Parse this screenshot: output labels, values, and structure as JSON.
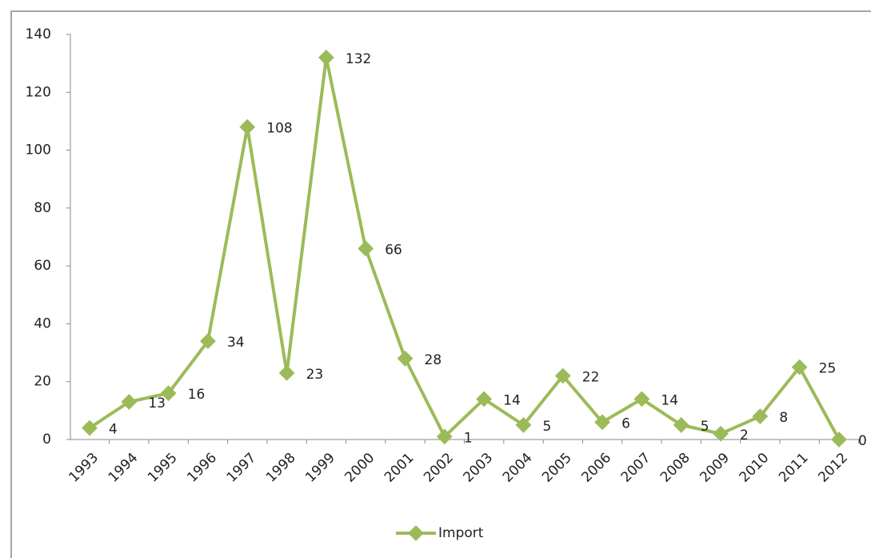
{
  "chart_data": {
    "type": "line",
    "categories": [
      "1993",
      "1994",
      "1995",
      "1996",
      "1997",
      "1998",
      "1999",
      "2000",
      "2001",
      "2002",
      "2003",
      "2004",
      "2005",
      "2006",
      "2007",
      "2008",
      "2009",
      "2010",
      "2011",
      "2012"
    ],
    "series": [
      {
        "name": "Import",
        "color": "#9bbb59",
        "values": [
          4,
          13,
          16,
          34,
          108,
          23,
          132,
          66,
          28,
          1,
          14,
          5,
          22,
          6,
          14,
          5,
          2,
          8,
          25,
          0
        ]
      }
    ],
    "ylim": [
      0,
      140
    ],
    "yticks": [
      0,
      20,
      40,
      60,
      80,
      100,
      120,
      140
    ],
    "legend": "bottom",
    "grid": false
  }
}
